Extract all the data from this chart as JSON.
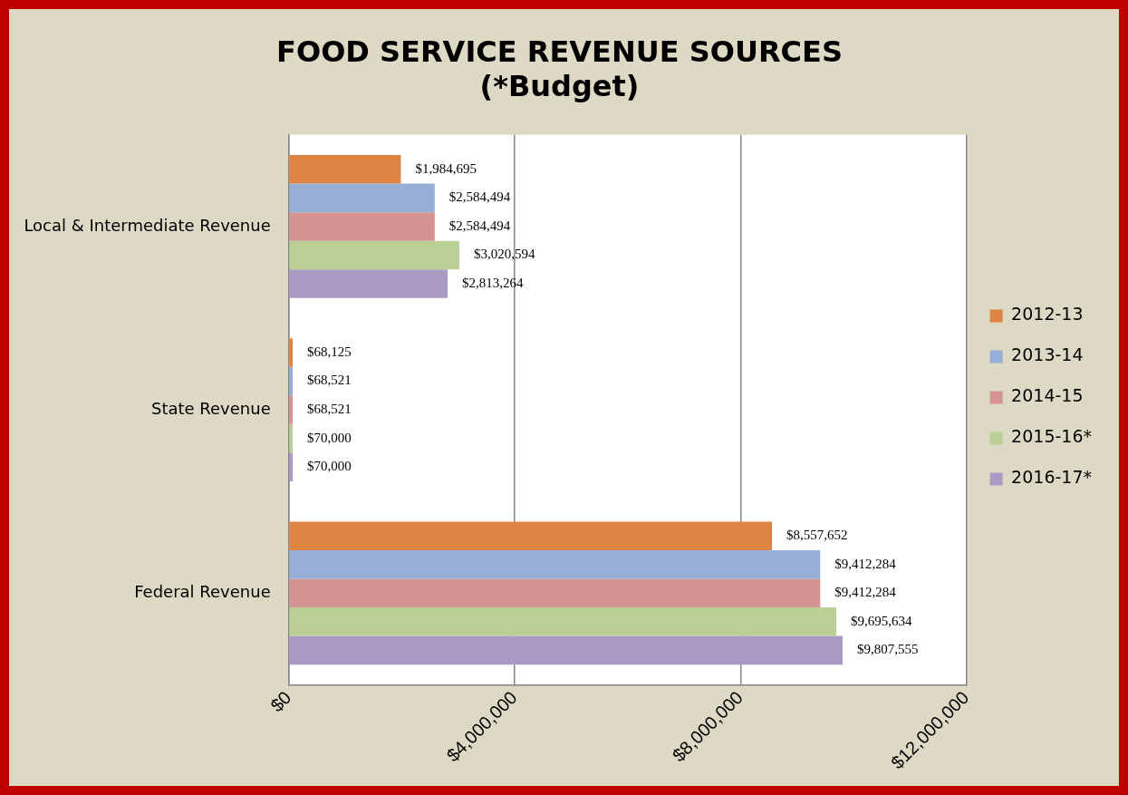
{
  "chart_data": {
    "type": "bar",
    "orientation": "horizontal",
    "title": "FOOD SERVICE REVENUE SOURCES\n(*Budget)",
    "categories": [
      "Local & Intermediate Revenue",
      "State Revenue",
      "Federal Revenue"
    ],
    "series": [
      {
        "name": "2012-13",
        "color": "#dd8442",
        "values": [
          1984695,
          68125,
          8557652
        ],
        "value_labels": [
          "$1,984,695",
          "$68,125",
          "$8,557,652"
        ]
      },
      {
        "name": "2013-14",
        "color": "#95afd6",
        "values": [
          2584494,
          68521,
          9412284
        ],
        "value_labels": [
          "$2,584,494",
          "$68,521",
          "$9,412,284"
        ]
      },
      {
        "name": "2014-15",
        "color": "#d49491",
        "values": [
          2584494,
          68521,
          9412284
        ],
        "value_labels": [
          "$2,584,494",
          "$68,521",
          "$9,412,284"
        ]
      },
      {
        "name": "2015-16*",
        "color": "#bccf95",
        "values": [
          3020594,
          70000,
          9695634
        ],
        "value_labels": [
          "$3,020,594",
          "$70,000",
          "$9,695,634"
        ]
      },
      {
        "name": "2016-17*",
        "color": "#a99bc4",
        "values": [
          2813264,
          70000,
          9807555
        ],
        "value_labels": [
          "$2,813,264",
          "$70,000",
          "$9,807,555"
        ]
      }
    ],
    "xlim": [
      0,
      12000000
    ],
    "xticks": [
      {
        "value": 0,
        "label": "$0"
      },
      {
        "value": 4000000,
        "label": "$4,000,000"
      },
      {
        "value": 8000000,
        "label": "$8,000,000"
      },
      {
        "value": 12000000,
        "label": "$12,000,000"
      }
    ],
    "grid": "x",
    "legend": "right"
  }
}
